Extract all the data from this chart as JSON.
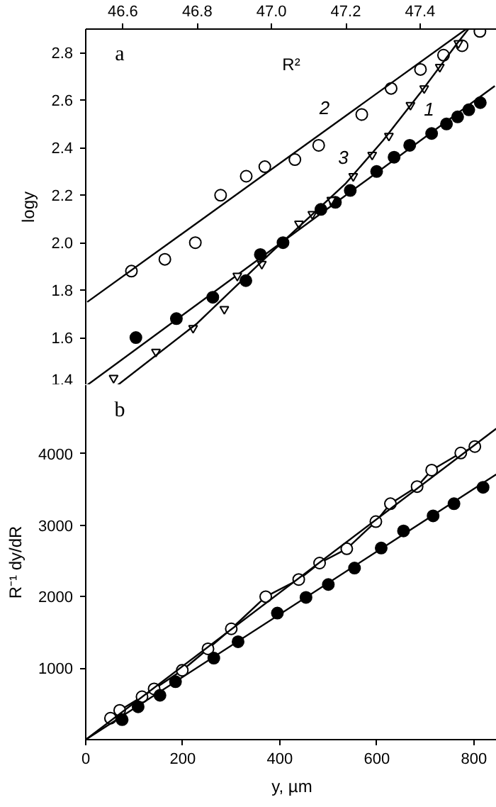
{
  "chart_data": [
    {
      "type": "scatter",
      "xlabel": "R²",
      "ylabel": "logy",
      "xlim": [
        46.5,
        47.61
      ],
      "xticks": [
        46.6,
        46.8,
        {
          "value": 47,
          "label": "47.0"
        },
        47.2,
        47.4
      ],
      "ylim": [
        1.4,
        2.9
      ],
      "yticks": [
        1.4,
        1.6,
        1.8,
        {
          "value": 2,
          "label": "2.0"
        },
        2.2,
        2.4,
        2.6,
        2.8
      ],
      "annotations": [
        "a"
      ],
      "series": [
        {
          "marker": "circle",
          "color": "#ffffff",
          "x": [
            46.623,
            46.713,
            46.795,
            46.863,
            46.932,
            46.982,
            47.063,
            47.127,
            47.243,
            47.322,
            47.401,
            47.463,
            47.513,
            47.561
          ],
          "values": [
            1.88,
            1.93,
            2.0,
            2.2,
            2.28,
            2.32,
            2.35,
            2.41,
            2.54,
            2.65,
            2.73,
            2.79,
            2.83,
            2.89
          ]
        },
        {
          "type": "line",
          "name": "2",
          "color": "#000000",
          "x": [
            46.504,
            47.524
          ],
          "values": [
            1.75,
            2.9
          ]
        },
        {
          "marker": "circle",
          "color": "#000000",
          "x": [
            46.635,
            46.744,
            46.842,
            46.931,
            46.97,
            47.031,
            47.133,
            47.172,
            47.212,
            47.283,
            47.33,
            47.372,
            47.431,
            47.471,
            47.501,
            47.531,
            47.562
          ],
          "values": [
            1.6,
            1.68,
            1.77,
            1.84,
            1.95,
            2.0,
            2.14,
            2.17,
            2.22,
            2.3,
            2.36,
            2.41,
            2.46,
            2.5,
            2.53,
            2.56,
            2.59
          ]
        },
        {
          "type": "line",
          "name": "1",
          "color": "#000000",
          "x": [
            46.504,
            47.601
          ],
          "values": [
            1.4,
            2.66
          ]
        },
        {
          "marker": "triangle",
          "color": "#ffffff",
          "x": [
            46.575,
            46.689,
            46.789,
            46.873,
            46.908,
            46.974,
            47.074,
            47.11,
            47.161,
            47.22,
            47.271,
            47.316,
            47.374,
            47.411,
            47.453,
            47.503
          ],
          "values": [
            1.43,
            1.54,
            1.64,
            1.72,
            1.86,
            1.91,
            2.08,
            2.12,
            2.18,
            2.28,
            2.37,
            2.45,
            2.58,
            2.65,
            2.74,
            2.84
          ]
        },
        {
          "type": "line",
          "name": "3",
          "color": "#000000",
          "x": [
            46.586,
            46.8,
            47.0,
            47.2,
            47.3,
            47.4,
            47.5,
            47.53
          ],
          "values": [
            1.4,
            1.66,
            1.96,
            2.25,
            2.43,
            2.63,
            2.84,
            2.9
          ]
        }
      ]
    },
    {
      "type": "scatter",
      "xlabel": "y, µm",
      "ylabel": "R⁻¹ dy/dR",
      "xlim": [
        0,
        850
      ],
      "xticks": [
        0,
        200,
        400,
        600,
        800
      ],
      "ylim": [
        0,
        4960
      ],
      "yticks": [
        1000,
        2000,
        3000,
        4000
      ],
      "annotations": [
        "b"
      ],
      "series": [
        {
          "type": "line",
          "color": "#000000",
          "x": [
            51,
            70,
            116,
            141,
            199,
            252,
            300,
            371,
            439,
            482,
            538,
            598,
            628,
            683,
            713,
            773,
            802
          ],
          "values": [
            300,
            410,
            600,
            710,
            970,
            1270,
            1550,
            2000,
            2240,
            2470,
            2670,
            3050,
            3300,
            3540,
            3770,
            4010,
            4100
          ]
        },
        {
          "marker": "circle",
          "color": "#ffffff",
          "x": [
            51,
            70,
            116,
            141,
            199,
            252,
            300,
            371,
            439,
            482,
            538,
            598,
            628,
            683,
            713,
            773,
            802
          ],
          "values": [
            300,
            410,
            600,
            710,
            970,
            1270,
            1550,
            2000,
            2240,
            2470,
            2670,
            3050,
            3300,
            3540,
            3770,
            4010,
            4100
          ]
        },
        {
          "type": "line",
          "color": "#000000",
          "x": [
            0,
            846
          ],
          "values": [
            0,
            4350
          ]
        },
        {
          "marker": "circle",
          "color": "#000000",
          "x": [
            75,
            108,
            153,
            185,
            264,
            314,
            395,
            454,
            500,
            554,
            609,
            655,
            716,
            759,
            819
          ],
          "values": [
            280,
            460,
            620,
            810,
            1140,
            1370,
            1770,
            1990,
            2170,
            2400,
            2680,
            2920,
            3130,
            3300,
            3530
          ]
        },
        {
          "type": "line",
          "color": "#000000",
          "x": [
            0,
            846
          ],
          "values": [
            0,
            3710
          ]
        }
      ]
    }
  ]
}
